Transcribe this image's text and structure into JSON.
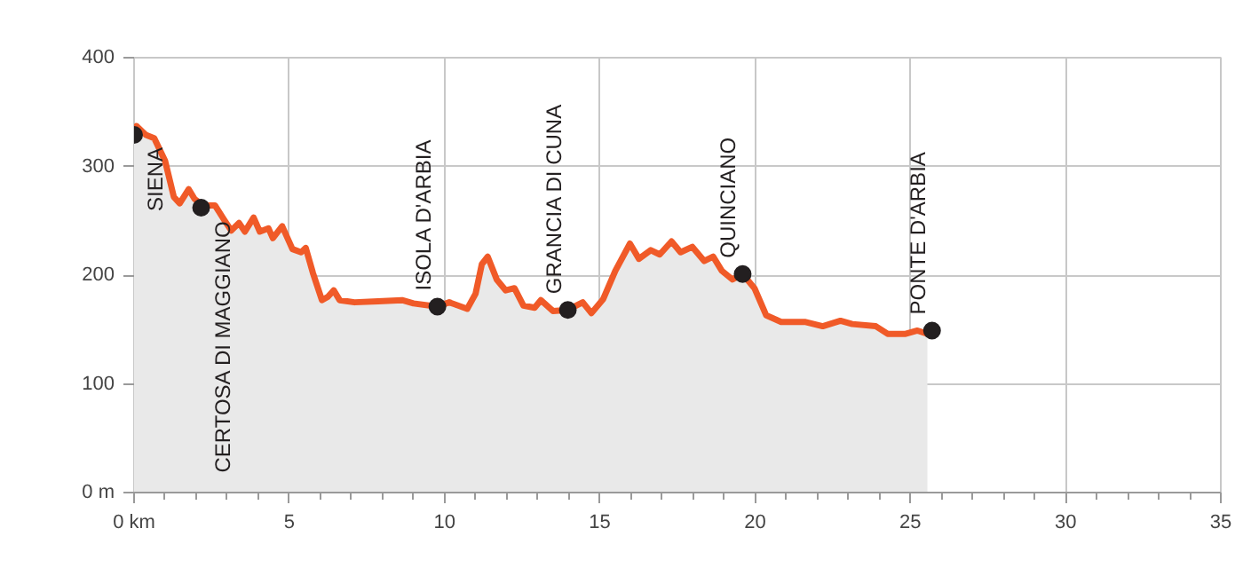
{
  "chart_data": {
    "type": "area",
    "x": [
      0,
      0.08,
      0.38,
      0.65,
      1.0,
      1.28,
      1.47,
      1.76,
      1.95,
      2.23,
      2.61,
      2.9,
      3.13,
      3.38,
      3.57,
      3.85,
      4.05,
      4.33,
      4.47,
      4.77,
      5.1,
      5.38,
      5.53,
      5.76,
      6.05,
      6.24,
      6.43,
      6.62,
      7.1,
      7.86,
      8.63,
      9.0,
      9.77,
      10.15,
      10.73,
      11.0,
      11.2,
      11.39,
      11.68,
      11.97,
      12.25,
      12.54,
      12.9,
      13.1,
      13.49,
      13.97,
      14.45,
      14.73,
      15.11,
      15.5,
      15.97,
      16.26,
      16.64,
      16.93,
      17.31,
      17.6,
      17.98,
      18.36,
      18.65,
      18.93,
      19.27,
      19.6,
      19.98,
      20.36,
      20.84,
      21.6,
      22.18,
      22.75,
      23.13,
      23.89,
      24.27,
      24.85,
      25.23,
      25.55
    ],
    "series": [
      {
        "color": "#f05a28",
        "values": [
          329,
          337,
          329,
          326,
          305,
          272,
          266,
          279,
          270,
          264,
          264,
          251,
          241,
          248,
          240,
          253,
          240,
          243,
          234,
          245,
          224,
          221,
          225,
          202,
          177,
          180,
          186,
          177,
          175,
          176,
          177,
          174,
          171,
          175,
          169,
          183,
          210,
          217,
          196,
          186,
          188,
          172,
          170,
          177,
          167,
          168,
          175,
          165,
          178,
          204,
          229,
          215,
          223,
          219,
          231,
          221,
          226,
          213,
          217,
          204,
          196,
          201,
          188,
          163,
          157,
          157,
          153,
          158,
          155,
          153,
          146,
          146,
          149,
          146
        ]
      }
    ],
    "xlim": [
      0,
      35
    ],
    "ylim": [
      0,
      400
    ],
    "xticks": [
      {
        "value": 0,
        "label": "0 km"
      },
      {
        "value": 1,
        "label": null
      },
      {
        "value": 2,
        "label": null
      },
      {
        "value": 3,
        "label": null
      },
      {
        "value": 4,
        "label": null
      },
      5,
      {
        "value": 6,
        "label": null
      },
      {
        "value": 7,
        "label": null
      },
      {
        "value": 8,
        "label": null
      },
      {
        "value": 9,
        "label": null
      },
      10,
      {
        "value": 11,
        "label": null
      },
      {
        "value": 12,
        "label": null
      },
      {
        "value": 13,
        "label": null
      },
      {
        "value": 14,
        "label": null
      },
      15,
      {
        "value": 16,
        "label": null
      },
      {
        "value": 17,
        "label": null
      },
      {
        "value": 18,
        "label": null
      },
      {
        "value": 19,
        "label": null
      },
      20,
      {
        "value": 21,
        "label": null
      },
      {
        "value": 22,
        "label": null
      },
      {
        "value": 23,
        "label": null
      },
      {
        "value": 24,
        "label": null
      },
      25,
      {
        "value": 26,
        "label": null
      },
      {
        "value": 27,
        "label": null
      },
      {
        "value": 28,
        "label": null
      },
      {
        "value": 29,
        "label": null
      },
      30,
      {
        "value": 31,
        "label": null
      },
      {
        "value": 32,
        "label": null
      },
      {
        "value": 33,
        "label": null
      },
      {
        "value": 34,
        "label": null
      },
      35
    ],
    "yticks": [
      {
        "value": 0,
        "label": "0 m"
      },
      100,
      200,
      300,
      400
    ],
    "grid": true,
    "annotations": [
      {
        "text": "SIENA",
        "x": 0,
        "y": 329
      },
      {
        "text": "CERTOSA DI MAGGIANO",
        "x": 2.16,
        "y": 262
      },
      {
        "text": "ISOLA D'ARBIA",
        "x": 9.77,
        "y": 171
      },
      {
        "text": "GRANCIA DI CUNA",
        "x": 13.97,
        "y": 168
      },
      {
        "text": "QUINCIANO",
        "x": 19.6,
        "y": 201
      },
      {
        "text": "PONTE D'ARBIA",
        "x": 25.7,
        "y": 149
      }
    ]
  }
}
